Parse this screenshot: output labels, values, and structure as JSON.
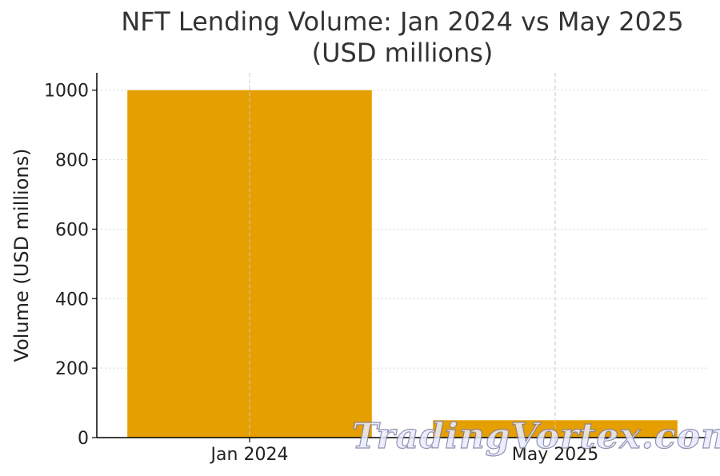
{
  "chart_data": {
    "type": "bar",
    "title_line1": "NFT Lending Volume: Jan 2024 vs May 2025",
    "title_line2": "(USD millions)",
    "xlabel": "",
    "ylabel": "Volume (USD millions)",
    "categories": [
      "Jan 2024",
      "May 2025"
    ],
    "values": [
      1000,
      50
    ],
    "ylim": [
      0,
      1050
    ],
    "yticks": [
      0,
      200,
      400,
      600,
      800,
      1000
    ],
    "bar_color": "#E69F00",
    "grid": true
  },
  "watermark": {
    "text": "TradingVortex.com"
  }
}
